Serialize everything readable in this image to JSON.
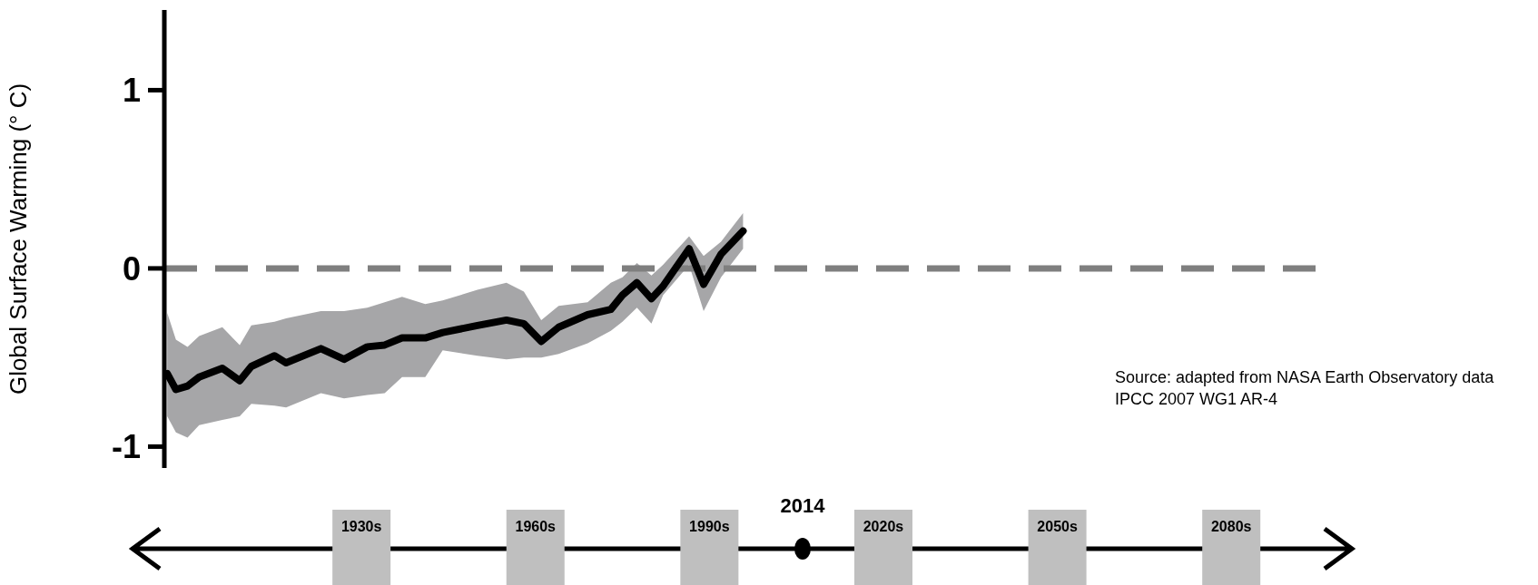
{
  "chart_data": {
    "type": "line",
    "ylabel": "Global Surface Warming (° C)",
    "x": [
      1896.5,
      1898,
      1900,
      1902,
      1906,
      1909,
      1911,
      1915,
      1917,
      1923,
      1927,
      1931,
      1934,
      1937,
      1941,
      1944,
      1950,
      1955,
      1958,
      1961,
      1964,
      1969,
      1973,
      1975,
      1977.5,
      1980,
      1982,
      1986.5,
      1989,
      1992,
      1995.8
    ],
    "series": [
      {
        "color": "#000000",
        "values": [
          -0.59,
          -0.68,
          -0.66,
          -0.61,
          -0.56,
          -0.63,
          -0.55,
          -0.49,
          -0.53,
          -0.45,
          -0.51,
          -0.44,
          -0.43,
          -0.39,
          -0.39,
          -0.36,
          -0.32,
          -0.29,
          -0.31,
          -0.41,
          -0.33,
          -0.26,
          -0.23,
          -0.15,
          -0.08,
          -0.17,
          -0.1,
          0.11,
          -0.09,
          0.08,
          0.21
        ],
        "upper": [
          -0.25,
          -0.4,
          -0.44,
          -0.38,
          -0.33,
          -0.43,
          -0.32,
          -0.3,
          -0.28,
          -0.24,
          -0.24,
          -0.22,
          -0.19,
          -0.16,
          -0.2,
          -0.18,
          -0.12,
          -0.08,
          -0.13,
          -0.29,
          -0.21,
          -0.19,
          -0.08,
          -0.05,
          0.03,
          -0.04,
          0.02,
          0.18,
          0.07,
          0.15,
          0.31
        ],
        "lower": [
          -0.83,
          -0.92,
          -0.95,
          -0.88,
          -0.85,
          -0.83,
          -0.76,
          -0.77,
          -0.78,
          -0.7,
          -0.73,
          -0.71,
          -0.7,
          -0.61,
          -0.61,
          -0.46,
          -0.49,
          -0.51,
          -0.5,
          -0.5,
          -0.48,
          -0.42,
          -0.35,
          -0.3,
          -0.22,
          -0.31,
          -0.15,
          0.02,
          -0.24,
          -0.05,
          0.11
        ]
      }
    ],
    "xlim": [
      1896,
      2095
    ],
    "xticks": [
      {
        "value": 1930,
        "label": "1930s"
      },
      {
        "value": 1960,
        "label": "1960s"
      },
      {
        "value": 1990,
        "label": "1990s"
      },
      {
        "value": 2020,
        "label": "2020s"
      },
      {
        "value": 2050,
        "label": "2050s"
      },
      {
        "value": 2080,
        "label": "2080s"
      }
    ],
    "ylim": [
      -1.12,
      1.45
    ],
    "yticks": [
      -1,
      0,
      1
    ],
    "ref_lines": [
      {
        "axis": "y",
        "value": 0,
        "color": "#7f7f7f",
        "line_style": "dashed"
      }
    ],
    "annotations": [
      "2014",
      "Source: adapted from NASA Earth Observatory data IPCC 2007 WG1 AR-4"
    ],
    "marker": "none"
  }
}
